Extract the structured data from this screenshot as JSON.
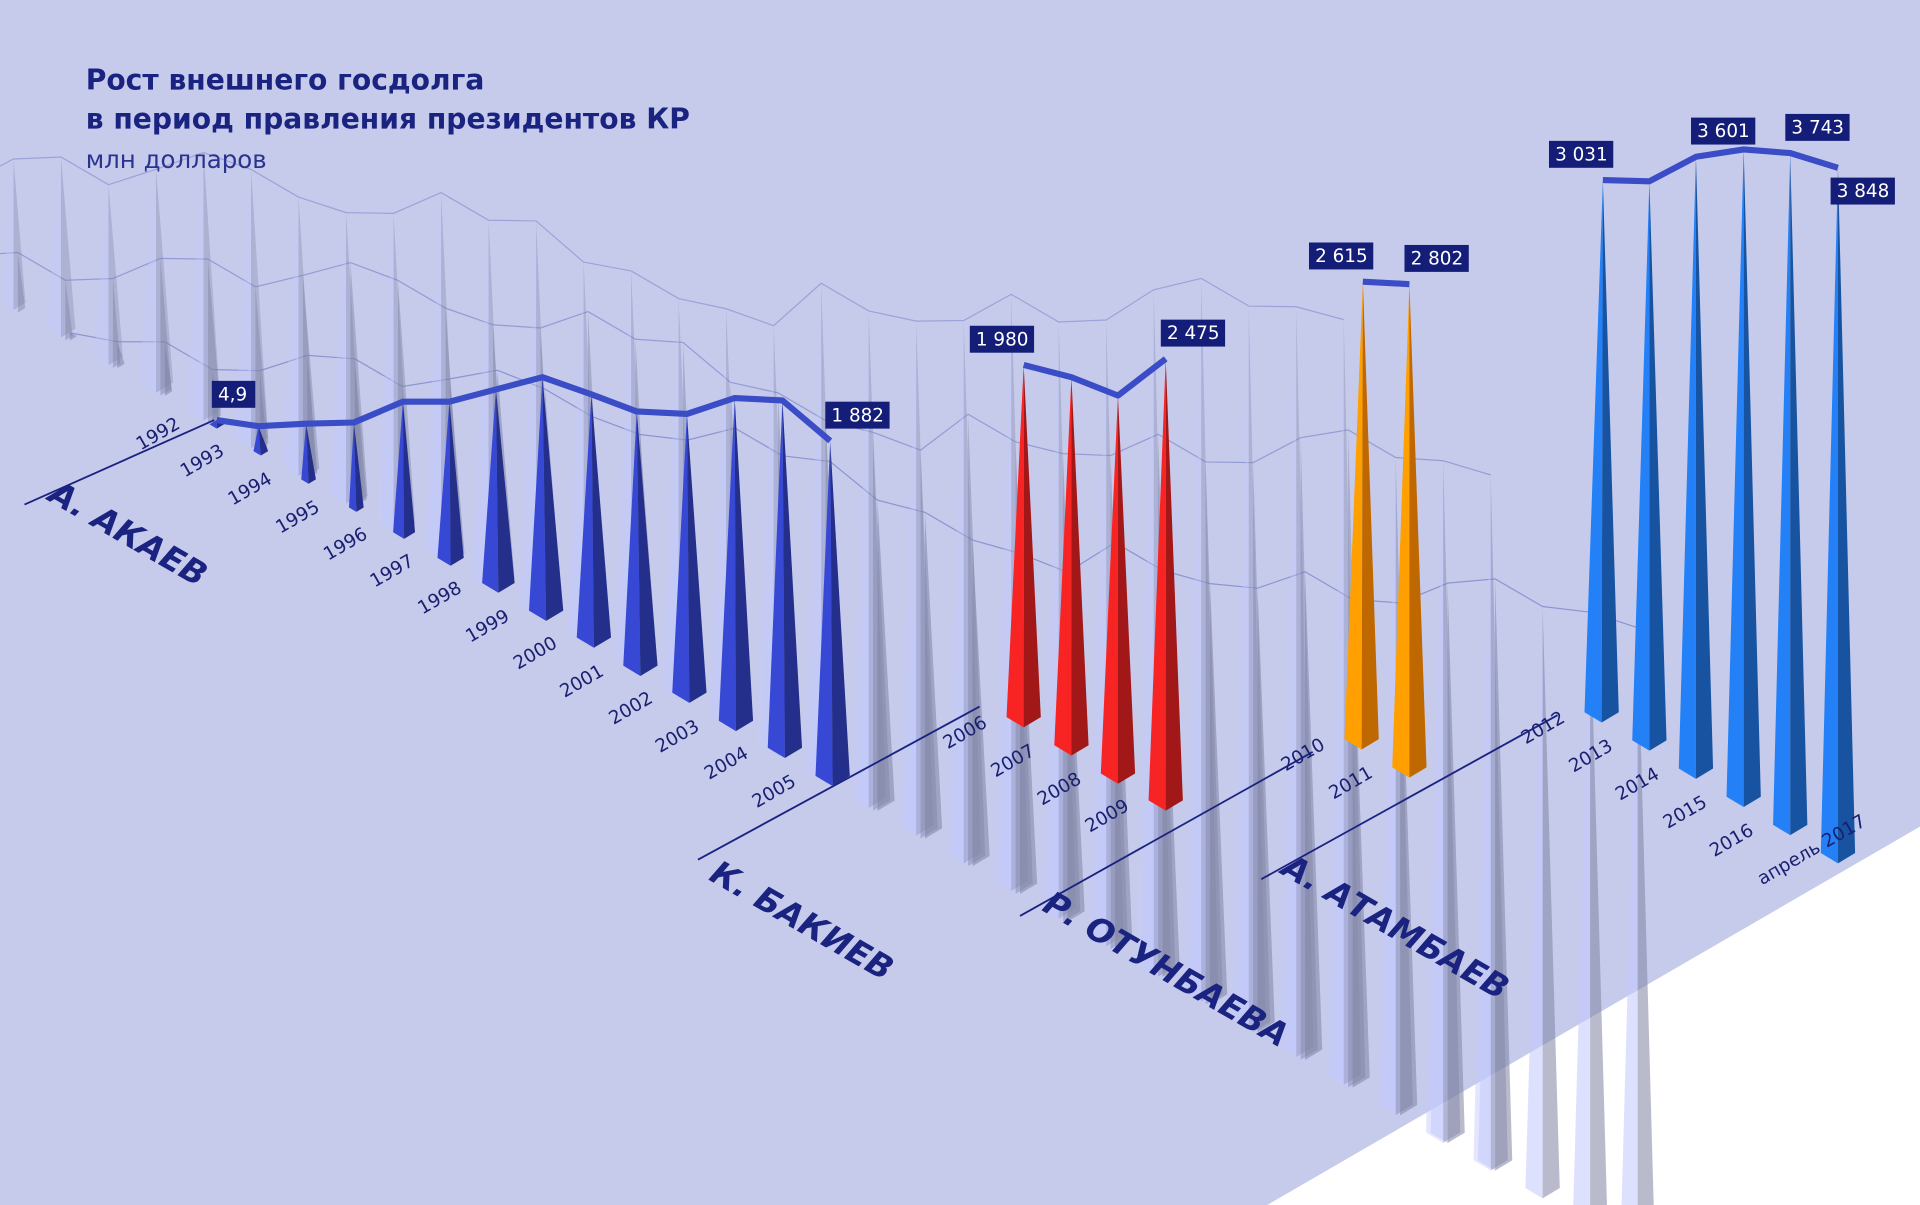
{
  "chart_data": {
    "type": "bar",
    "title": "Рост внешнего госдолга",
    "title_line2": "в период правления президентов КР",
    "subtitle": "млн долларов",
    "categories": [
      "1992",
      "1993",
      "1994",
      "1995",
      "1996",
      "1997",
      "1998",
      "1999",
      "2000",
      "2001",
      "2002",
      "2003",
      "2004",
      "2005",
      "2006",
      "2007",
      "2008",
      "2009",
      "2010",
      "2011",
      "2012",
      "2013",
      "2014",
      "2015",
      "2016",
      "апрель 2017"
    ],
    "values": [
      4.9,
      null,
      null,
      null,
      null,
      null,
      null,
      null,
      null,
      null,
      null,
      null,
      null,
      1882,
      1980,
      null,
      null,
      2475,
      2615,
      2802,
      3031,
      null,
      3601,
      null,
      3743,
      3848
    ],
    "value_labels": [
      "4,9",
      "",
      "",
      "",
      "",
      "",
      "",
      "",
      "",
      "",
      "",
      "",
      "",
      "1 882",
      "1 980",
      "",
      "",
      "2 475",
      "2 615",
      "2 802",
      "3 031",
      "",
      "3 601",
      "",
      "3 743",
      "3 848"
    ],
    "groups": [
      {
        "name": "А. АКАЕВ",
        "from": 0,
        "to": 13,
        "color": "#2f3fb8"
      },
      {
        "name": "К. БАКИЕВ",
        "from": 14,
        "to": 17,
        "color": "#d81e1e"
      },
      {
        "name": "Р. ОТУНБАЕВА",
        "from": 18,
        "to": 19,
        "color": "#ff8a00"
      },
      {
        "name": "А. АТАМБАЕВ",
        "from": 20,
        "to": 25,
        "color": "#1f6fd6"
      }
    ],
    "colors": {
      "background": "#c6cbec",
      "line": "#3a4cc6",
      "label_bg": "#141d78",
      "ghost": "#aab0dc"
    }
  }
}
